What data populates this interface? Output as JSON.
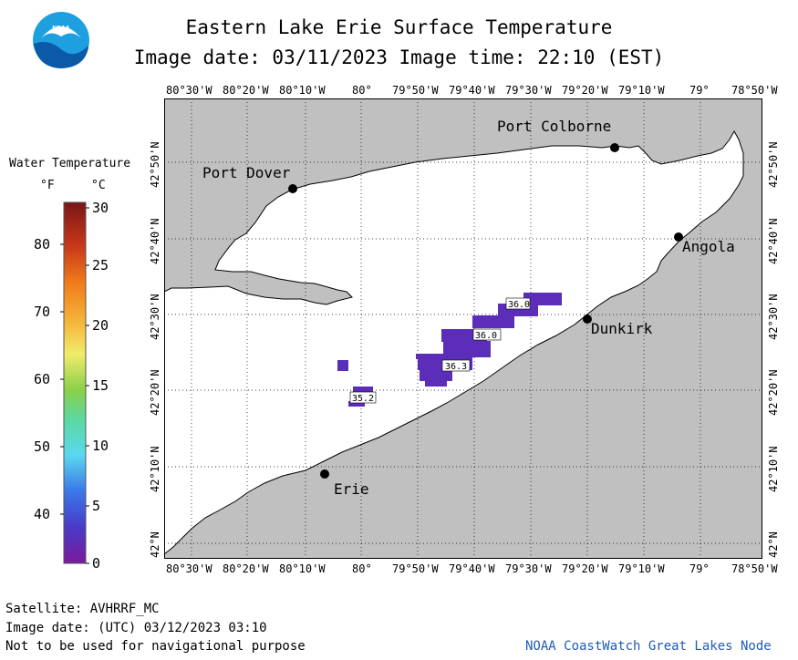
{
  "header": {
    "title": "Eastern Lake Erie Surface Temperature",
    "subtitle": "Image date: 03/11/2023   Image time: 22:10 (EST)"
  },
  "logo": {
    "text": "NOAA",
    "icon": "noaa-logo-icon"
  },
  "map": {
    "lon_labels": [
      "80°30'W",
      "80°20'W",
      "80°10'W",
      "80°",
      "79°50'W",
      "79°40'W",
      "79°30'W",
      "79°20'W",
      "79°10'W",
      "79°",
      "78°50'W"
    ],
    "lat_labels": [
      "42°N",
      "42°10'N",
      "42°20'N",
      "42°30'N",
      "42°40'N",
      "42°50'N"
    ],
    "cities": [
      {
        "name": "Port Colborne"
      },
      {
        "name": "Port Dover"
      },
      {
        "name": "Angola"
      },
      {
        "name": "Dunkirk"
      },
      {
        "name": "Erie"
      }
    ],
    "temp_labels": [
      "36.0",
      "36.0",
      "36.3",
      "35.2"
    ],
    "colors": {
      "land": "#c0c0c0",
      "water": "#ffffff",
      "plume": "#5b2db8"
    }
  },
  "legend": {
    "title": "Water Temperature",
    "unit_f": "°F",
    "unit_c": "°C",
    "f_ticks": [
      "80",
      "70",
      "60",
      "50",
      "40"
    ],
    "c_ticks": [
      "30",
      "25",
      "20",
      "15",
      "10",
      "5",
      "0"
    ]
  },
  "footer": {
    "line1": "Satellite: AVHRRF_MC",
    "line2": "Image date: (UTC) 03/12/2023  03:10",
    "line3": "Not to be used for navigational purpose",
    "credit": "NOAA CoastWatch Great Lakes Node"
  }
}
